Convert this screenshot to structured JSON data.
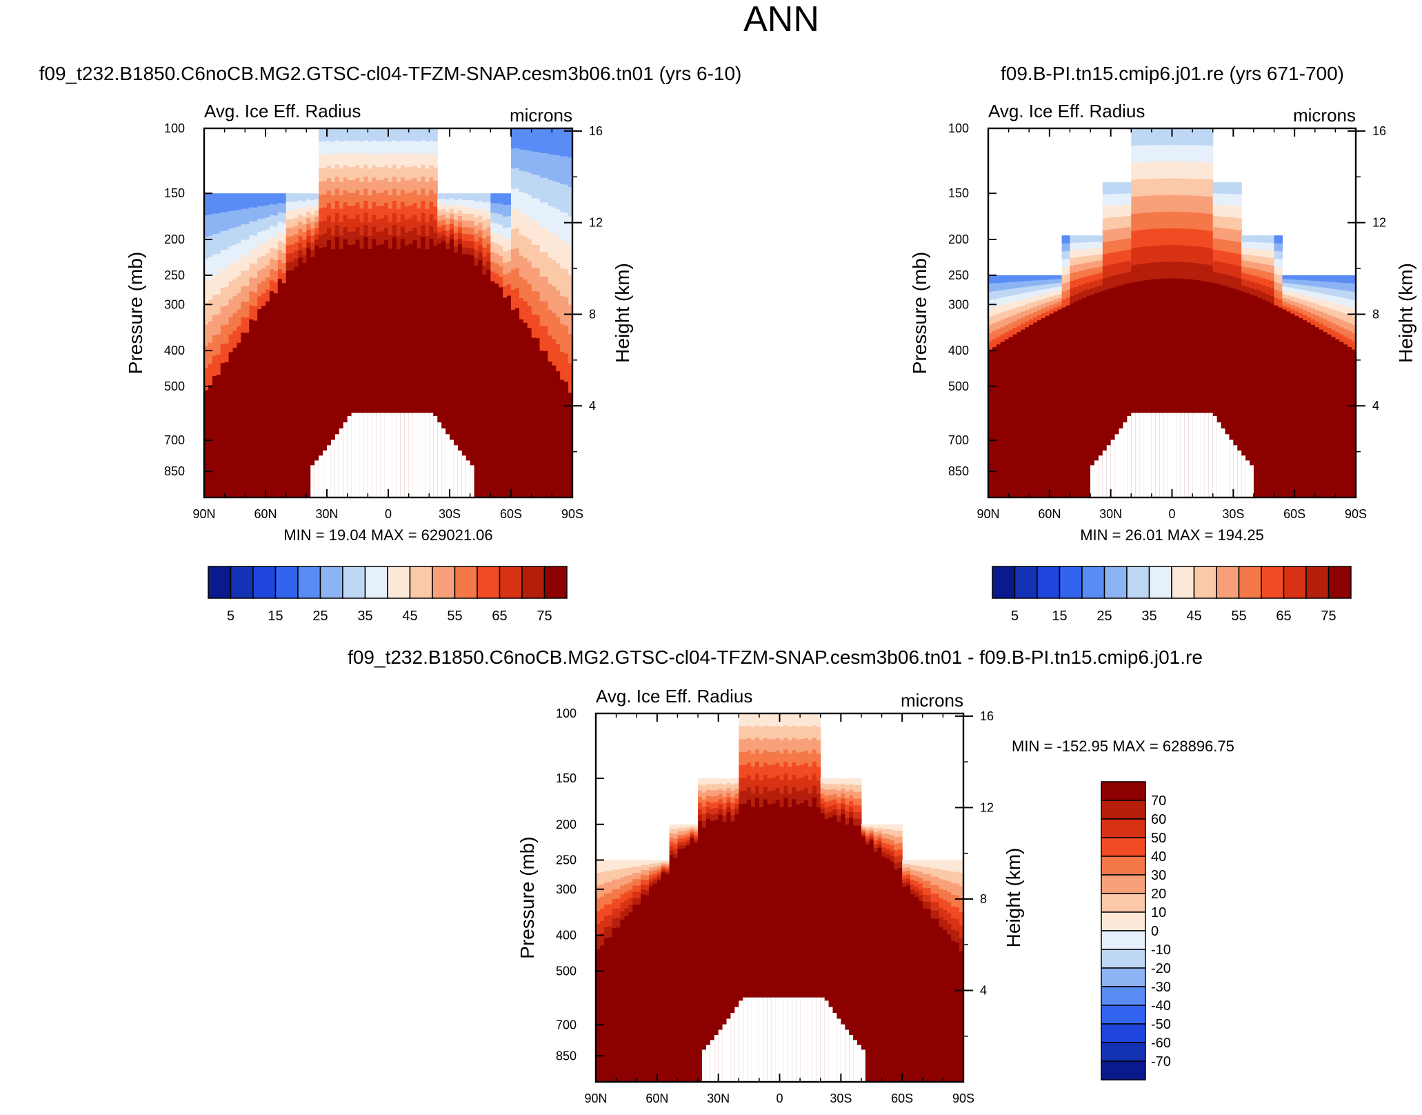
{
  "page_title": "ANN",
  "chart_data": [
    {
      "type": "heatmap",
      "id": "p1",
      "case_title": "f09_t232.B1850.C6noCB.MG2.GTSC-cl04-TFZM-SNAP.cesm3b06.tn01 (yrs 6-10)",
      "field_label": "Avg. Ice Eff. Radius",
      "units": "microns",
      "ylabel": "Pressure (mb)",
      "ylabel_right": "Height (km)",
      "x_ticks": [
        "90N",
        "60N",
        "30N",
        "0",
        "30S",
        "60S",
        "90S"
      ],
      "x_tick_values": [
        90,
        60,
        30,
        0,
        -30,
        -60,
        -90
      ],
      "y_ticks": [
        "100",
        "150",
        "200",
        "250",
        "300",
        "400",
        "500",
        "700",
        "850"
      ],
      "y_tick_values": [
        100,
        150,
        200,
        250,
        300,
        400,
        500,
        700,
        850
      ],
      "y_range_mb": [
        100,
        1000
      ],
      "height_ticks": [
        "16",
        "12",
        "8",
        "4"
      ],
      "height_tick_values": [
        16,
        12,
        8,
        4
      ],
      "stats": "MIN =  19.04  MAX = 629021.06",
      "min": 19.04,
      "max": 629021.06,
      "colorbar": {
        "orientation": "horizontal",
        "labels": [
          "5",
          "15",
          "25",
          "35",
          "45",
          "55",
          "65",
          "75"
        ],
        "levels": [
          0,
          5,
          10,
          15,
          20,
          25,
          30,
          35,
          40,
          45,
          50,
          55,
          60,
          65,
          70,
          75,
          80
        ],
        "colors": [
          "#0a1a8c",
          "#1432b4",
          "#1e46dc",
          "#3264f0",
          "#5a8cf5",
          "#8cb4f5",
          "#bed7f5",
          "#e6f0fa",
          "#fde8d8",
          "#fbc8a8",
          "#f8a07a",
          "#f57848",
          "#f04b23",
          "#d73214",
          "#b41e0a",
          "#8c0000"
        ]
      }
    },
    {
      "type": "heatmap",
      "id": "p2",
      "case_title": "f09.B-PI.tn15.cmip6.j01.re (yrs 671-700)",
      "field_label": "Avg. Ice Eff. Radius",
      "units": "microns",
      "ylabel": "Pressure (mb)",
      "ylabel_right": "Height (km)",
      "x_ticks": [
        "90N",
        "60N",
        "30N",
        "0",
        "30S",
        "60S",
        "90S"
      ],
      "x_tick_values": [
        90,
        60,
        30,
        0,
        -30,
        -60,
        -90
      ],
      "y_ticks": [
        "100",
        "150",
        "200",
        "250",
        "300",
        "400",
        "500",
        "700",
        "850"
      ],
      "y_tick_values": [
        100,
        150,
        200,
        250,
        300,
        400,
        500,
        700,
        850
      ],
      "y_range_mb": [
        100,
        1000
      ],
      "height_ticks": [
        "16",
        "12",
        "8",
        "4"
      ],
      "height_tick_values": [
        16,
        12,
        8,
        4
      ],
      "stats": "MIN =  26.01  MAX = 194.25",
      "min": 26.01,
      "max": 194.25,
      "colorbar": {
        "orientation": "horizontal",
        "labels": [
          "5",
          "15",
          "25",
          "35",
          "45",
          "55",
          "65",
          "75"
        ],
        "levels": [
          0,
          5,
          10,
          15,
          20,
          25,
          30,
          35,
          40,
          45,
          50,
          55,
          60,
          65,
          70,
          75,
          80
        ],
        "colors": [
          "#0a1a8c",
          "#1432b4",
          "#1e46dc",
          "#3264f0",
          "#5a8cf5",
          "#8cb4f5",
          "#bed7f5",
          "#e6f0fa",
          "#fde8d8",
          "#fbc8a8",
          "#f8a07a",
          "#f57848",
          "#f04b23",
          "#d73214",
          "#b41e0a",
          "#8c0000"
        ]
      }
    },
    {
      "type": "heatmap",
      "id": "p3",
      "case_title": "f09_t232.B1850.C6noCB.MG2.GTSC-cl04-TFZM-SNAP.cesm3b06.tn01 - f09.B-PI.tn15.cmip6.j01.re",
      "field_label": "Avg. Ice Eff. Radius",
      "units": "microns",
      "ylabel": "Pressure (mb)",
      "ylabel_right": "Height (km)",
      "x_ticks": [
        "90N",
        "60N",
        "30N",
        "0",
        "30S",
        "60S",
        "90S"
      ],
      "x_tick_values": [
        90,
        60,
        30,
        0,
        -30,
        -60,
        -90
      ],
      "y_ticks": [
        "100",
        "150",
        "200",
        "250",
        "300",
        "400",
        "500",
        "700",
        "850"
      ],
      "y_tick_values": [
        100,
        150,
        200,
        250,
        300,
        400,
        500,
        700,
        850
      ],
      "y_range_mb": [
        100,
        1000
      ],
      "height_ticks": [
        "16",
        "12",
        "8",
        "4"
      ],
      "height_tick_values": [
        16,
        12,
        8,
        4
      ],
      "stats": "MIN = -152.95  MAX = 628896.75",
      "min": -152.95,
      "max": 628896.75,
      "colorbar": {
        "orientation": "vertical",
        "labels": [
          "70",
          "60",
          "50",
          "40",
          "30",
          "20",
          "10",
          "0",
          "-10",
          "-20",
          "-30",
          "-40",
          "-50",
          "-60",
          "-70"
        ],
        "levels": [
          -80,
          -70,
          -60,
          -50,
          -40,
          -30,
          -20,
          -10,
          0,
          10,
          20,
          30,
          40,
          50,
          60,
          70,
          80
        ],
        "colors": [
          "#0a1a8c",
          "#1432b4",
          "#1e46dc",
          "#3264f0",
          "#5a8cf5",
          "#8cb4f5",
          "#bed7f5",
          "#e6f0fa",
          "#fde8d8",
          "#fbc8a8",
          "#f8a07a",
          "#f57848",
          "#f04b23",
          "#d73214",
          "#b41e0a",
          "#8c0000"
        ]
      }
    }
  ]
}
